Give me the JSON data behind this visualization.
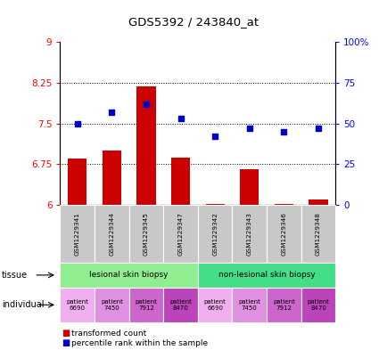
{
  "title": "GDS5392 / 243840_at",
  "samples": [
    "GSM1229341",
    "GSM1229344",
    "GSM1229345",
    "GSM1229347",
    "GSM1229342",
    "GSM1229343",
    "GSM1229346",
    "GSM1229348"
  ],
  "transformed_count": [
    6.85,
    7.0,
    8.18,
    6.87,
    6.02,
    6.65,
    6.02,
    6.1
  ],
  "percentile_rank": [
    50,
    57,
    62,
    53,
    42,
    47,
    45,
    47
  ],
  "y_min": 6.0,
  "y_max": 9.0,
  "y_ticks": [
    6.0,
    6.75,
    7.5,
    8.25,
    9.0
  ],
  "y_tick_labels": [
    "6",
    "6.75",
    "7.5",
    "8.25",
    "9"
  ],
  "y2_ticks": [
    0,
    25,
    50,
    75,
    100
  ],
  "y2_tick_labels": [
    "0",
    "25",
    "50",
    "75",
    "100%"
  ],
  "bar_color": "#cc0000",
  "dot_color": "#0000cc",
  "tissue_groups": [
    {
      "label": "lesional skin biopsy",
      "start": 0,
      "end": 3,
      "color": "#90ee90"
    },
    {
      "label": "non-lesional skin biopsy",
      "start": 4,
      "end": 7,
      "color": "#44dd88"
    }
  ],
  "indiv_colors": [
    "#f0b0f0",
    "#e090e0",
    "#cc66cc",
    "#bb44bb",
    "#f0b0f0",
    "#e090e0",
    "#cc66cc",
    "#bb44bb"
  ],
  "indiv_labels": [
    "patient\n6690",
    "patient\n7450",
    "patient\n7912",
    "patient\n8470",
    "patient\n6690",
    "patient\n7450",
    "patient\n7912",
    "patient\n8470"
  ],
  "gsm_bg_color": "#c8c8c8"
}
